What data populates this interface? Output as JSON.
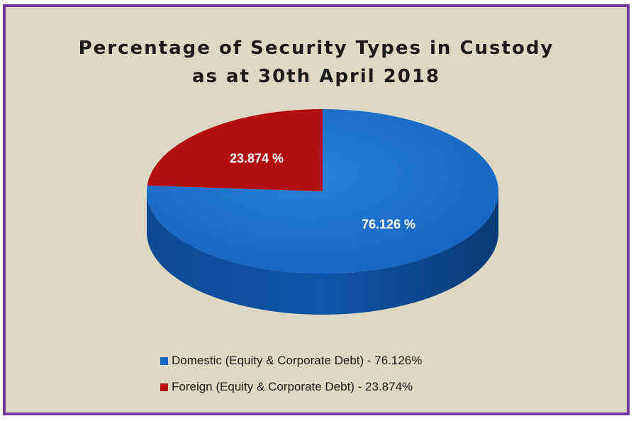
{
  "chart_data": {
    "type": "pie",
    "title": "Percentage of Security Types in Custody",
    "subtitle": "as at 30th April 2018",
    "slices": [
      {
        "label": "Domestic (Equity & Corporate Debt) - 76.126%",
        "value": 76.126,
        "data_label": "76.126 %",
        "color": "#1467c4"
      },
      {
        "label": "Foreign (Equity & Corporate Debt) - 23.874%",
        "value": 23.874,
        "data_label": "23.874 %",
        "color": "#b30f10"
      }
    ],
    "legend_position": "bottom",
    "style": "3d"
  }
}
